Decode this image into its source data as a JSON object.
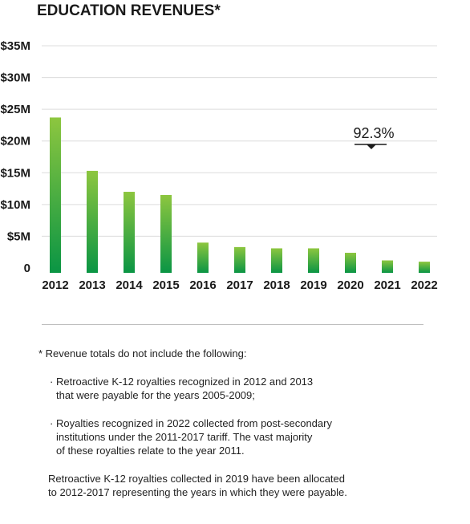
{
  "chart_data": {
    "type": "bar",
    "title": "EDUCATION REVENUES*",
    "categories": [
      "2012",
      "2013",
      "2014",
      "2015",
      "2016",
      "2017",
      "2018",
      "2019",
      "2020",
      "2021",
      "2022"
    ],
    "values": [
      23.7,
      15.3,
      12.0,
      11.5,
      4.0,
      3.3,
      3.1,
      3.1,
      2.4,
      1.2,
      1.0
    ],
    "value_unit": "$M",
    "yticks": [
      "0",
      "$5M",
      "$10M",
      "$15M",
      "$20M",
      "$25M",
      "$30M",
      "$35M"
    ],
    "ylim": [
      0,
      35
    ],
    "grid": true,
    "bar_gradient": {
      "top": "#8dc63f",
      "bottom": "#0a9544"
    },
    "annotation": {
      "text": "92.3%",
      "marker": "down-arrow",
      "category": "2021"
    }
  },
  "notes": {
    "heading": "*  Revenue totals do not include the following:",
    "bullets": [
      {
        "mark": "·",
        "text": "Retroactive K-12 royalties recognized in 2012 and 2013\nthat were payable for the years 2005-2009;"
      },
      {
        "mark": "·",
        "text": "Royalties recognized in 2022 collected from post-secondary\ninstitutions under the 2011-2017 tariff. The vast majority\nof these royalties relate to the year 2011."
      }
    ],
    "footer": "Retroactive K-12 royalties collected in 2019 have been allocated\nto 2012-2017 representing the years in which they were payable."
  }
}
